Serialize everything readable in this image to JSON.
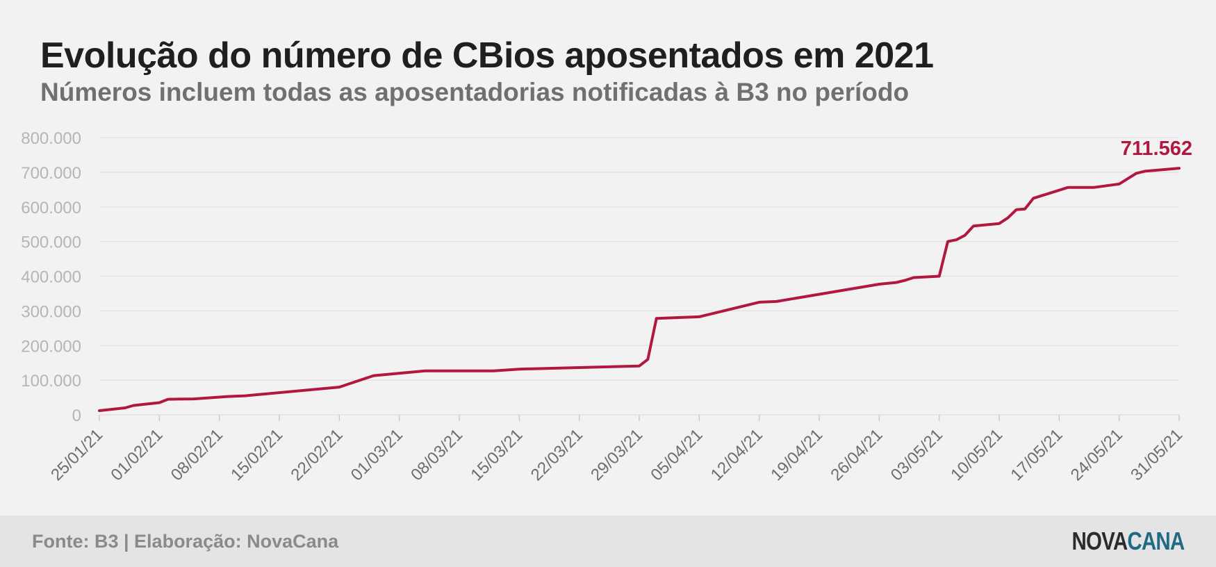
{
  "header": {
    "title": "Evolução do número de CBios aposentados em 2021",
    "subtitle": "Números incluem todas as aposentadorias notificadas à B3 no período"
  },
  "footer": {
    "source": "Fonte: B3 | Elaboração: NovaCana",
    "logo_part1": "NOVA",
    "logo_part2": "CANA"
  },
  "colors": {
    "line": "#b0183f",
    "grid": "#e0e0e0",
    "tick_label": "#b5b5b5",
    "x_tick_label": "#6e6e6e"
  },
  "chart_data": {
    "type": "line",
    "xlabel": "",
    "ylabel": "",
    "ylim": [
      0,
      800000
    ],
    "xlim": [
      "2021-01-25",
      "2021-05-31"
    ],
    "grid": true,
    "y_ticks": [
      0,
      100000,
      200000,
      300000,
      400000,
      500000,
      600000,
      700000,
      800000
    ],
    "y_tick_labels": [
      "0",
      "100.000",
      "200.000",
      "300.000",
      "400.000",
      "500.000",
      "600.000",
      "700.000",
      "800.000"
    ],
    "x_ticks": [
      "2021-01-25",
      "2021-02-01",
      "2021-02-08",
      "2021-02-15",
      "2021-02-22",
      "2021-03-01",
      "2021-03-08",
      "2021-03-15",
      "2021-03-22",
      "2021-03-29",
      "2021-04-05",
      "2021-04-12",
      "2021-04-19",
      "2021-04-26",
      "2021-05-03",
      "2021-05-10",
      "2021-05-17",
      "2021-05-24",
      "2021-05-31"
    ],
    "x_tick_labels": [
      "25/01/21",
      "01/02/21",
      "08/02/21",
      "15/02/21",
      "22/02/21",
      "01/03/21",
      "08/03/21",
      "15/03/21",
      "22/03/21",
      "29/03/21",
      "05/04/21",
      "12/04/21",
      "19/04/21",
      "26/04/21",
      "03/05/21",
      "10/05/21",
      "17/05/21",
      "24/05/21",
      "31/05/21"
    ],
    "series": [
      {
        "x": [
          "2021-01-25",
          "2021-01-28",
          "2021-01-29",
          "2021-02-01",
          "2021-02-02",
          "2021-02-05",
          "2021-02-09",
          "2021-02-11",
          "2021-02-22",
          "2021-02-26",
          "2021-03-04",
          "2021-03-12",
          "2021-03-15",
          "2021-03-29",
          "2021-03-30",
          "2021-03-31",
          "2021-04-05",
          "2021-04-12",
          "2021-04-14",
          "2021-04-26",
          "2021-04-28",
          "2021-04-29",
          "2021-04-30",
          "2021-05-03",
          "2021-05-04",
          "2021-05-05",
          "2021-05-06",
          "2021-05-07",
          "2021-05-10",
          "2021-05-11",
          "2021-05-12",
          "2021-05-13",
          "2021-05-14",
          "2021-05-18",
          "2021-05-21",
          "2021-05-24",
          "2021-05-26",
          "2021-05-27",
          "2021-05-31"
        ],
        "y": [
          12000,
          20000,
          27000,
          35000,
          45000,
          46000,
          53000,
          55000,
          80000,
          113000,
          127000,
          127000,
          132000,
          141000,
          160000,
          278000,
          283000,
          325000,
          327000,
          377000,
          382000,
          388000,
          396000,
          400000,
          500000,
          505000,
          518000,
          545000,
          552000,
          568000,
          592000,
          594000,
          625000,
          656000,
          656000,
          666000,
          697000,
          703000,
          711562
        ]
      }
    ],
    "annotations": [
      {
        "x": "2021-05-31",
        "y": 711562,
        "text": "711.562"
      }
    ]
  }
}
